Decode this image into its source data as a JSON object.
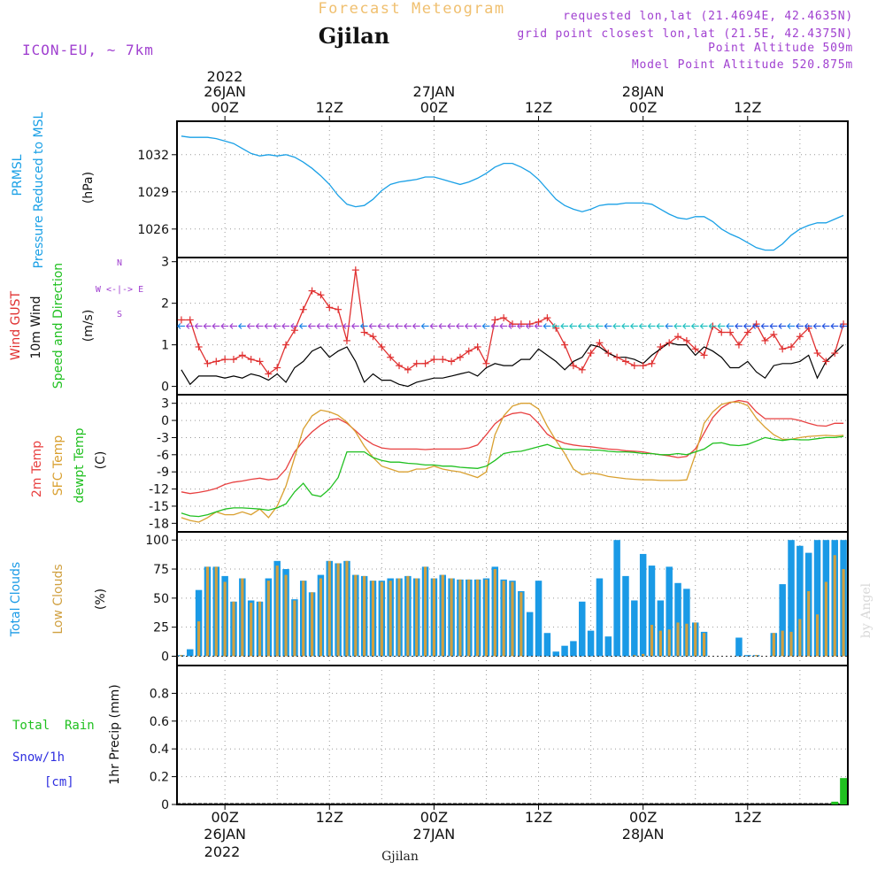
{
  "header": {
    "subtitle": "Forecast Meteogram",
    "title": "Gjilan",
    "model": "ICON-EU, ~ 7km",
    "requested": "requested lon,lat (21.4694E, 42.4635N)",
    "gridpoint": "grid point closest lon,lat (21.5E, 42.4375N)",
    "point_alt": "Point Altitude 509m",
    "model_alt": "Model Point Altitude 520.875m"
  },
  "footer": {
    "location": "Gjilan",
    "watermark": "by Angel"
  },
  "time_axis": {
    "top_year": "2022",
    "labels": [
      {
        "t": 0,
        "label": "00Z",
        "date": "26JAN"
      },
      {
        "t": 12,
        "label": "12Z",
        "date": ""
      },
      {
        "t": 24,
        "label": "00Z",
        "date": "27JAN"
      },
      {
        "t": 36,
        "label": "12Z",
        "date": ""
      },
      {
        "t": 48,
        "label": "00Z",
        "date": "28JAN"
      },
      {
        "t": 60,
        "label": "12Z",
        "date": ""
      }
    ],
    "bottom_year": "2022"
  },
  "colors": {
    "pressure": "#1aa0e6",
    "gust": "#e03030",
    "wind": "#000000",
    "wind_dir_label": "#1fc01f",
    "temp": "#e84040",
    "sfc": "#d9a030",
    "dewpt": "#20c020",
    "total_clouds": "#1a9ae6",
    "low_clouds": "#d0a040",
    "rain": "#20c020",
    "snow": "#3030e0",
    "purple": "#a040d0",
    "subtitle": "#f0c070"
  },
  "labels": {
    "pressure": [
      "PRMSL",
      "Pressure Reduced to MSL",
      "(hPa)"
    ],
    "wind": [
      "Wind GUST",
      "10m Wind",
      "Speed and Direction",
      "(m/s)"
    ],
    "compass": [
      "N",
      "W <-|-> E",
      "S"
    ],
    "temp": [
      "2m Temp",
      "SFC Temp",
      "dewpt Temp",
      "(C)"
    ],
    "clouds": [
      "Total Clouds",
      "Low Clouds",
      "(%)"
    ],
    "precip": [
      "Total  Rain",
      "Snow/1h",
      "[cm]",
      "1hr Precip (mm)"
    ]
  },
  "chart_data": [
    {
      "type": "line",
      "name": "pressure",
      "x": [
        -5,
        -4,
        -3,
        -2,
        -1,
        0,
        1,
        2,
        3,
        4,
        5,
        6,
        7,
        8,
        9,
        10,
        11,
        12,
        13,
        14,
        15,
        16,
        17,
        18,
        19,
        20,
        21,
        22,
        23,
        24,
        25,
        26,
        27,
        28,
        29,
        30,
        31,
        32,
        33,
        34,
        35,
        36,
        37,
        38,
        39,
        40,
        41,
        42,
        43,
        44,
        45,
        46,
        47,
        48,
        49,
        50,
        51,
        52,
        53,
        54,
        55,
        56,
        57,
        58,
        59,
        60,
        61,
        62,
        63,
        64,
        65,
        66,
        67,
        68,
        69,
        70,
        71
      ],
      "y": [
        1033.5,
        1033.4,
        1033.4,
        1033.4,
        1033.3,
        1033.1,
        1032.9,
        1032.5,
        1032.1,
        1031.9,
        1032.0,
        1031.9,
        1032.0,
        1031.8,
        1031.4,
        1030.9,
        1030.3,
        1029.6,
        1028.7,
        1028.0,
        1027.8,
        1027.9,
        1028.4,
        1029.1,
        1029.6,
        1029.8,
        1029.9,
        1030.0,
        1030.2,
        1030.2,
        1030.0,
        1029.8,
        1029.6,
        1029.8,
        1030.1,
        1030.5,
        1031.0,
        1031.3,
        1031.3,
        1031.0,
        1030.6,
        1030.0,
        1029.2,
        1028.4,
        1027.9,
        1027.6,
        1027.4,
        1027.6,
        1027.9,
        1028.0,
        1028.0,
        1028.1,
        1028.1,
        1028.1,
        1028.0,
        1027.6,
        1027.2,
        1026.9,
        1026.8,
        1027.0,
        1027.0,
        1026.6,
        1026.0,
        1025.6,
        1025.3,
        1024.9,
        1024.5,
        1024.3,
        1024.3,
        1024.8,
        1025.5,
        1026.0,
        1026.3,
        1026.5,
        1026.5,
        1026.8,
        1027.1
      ],
      "ylim": [
        1023.7,
        1034.7
      ],
      "ticks": [
        1026,
        1029,
        1032
      ]
    },
    {
      "type": "line",
      "name": "wind",
      "x": [
        -5,
        -4,
        -3,
        -2,
        -1,
        0,
        1,
        2,
        3,
        4,
        5,
        6,
        7,
        8,
        9,
        10,
        11,
        12,
        13,
        14,
        15,
        16,
        17,
        18,
        19,
        20,
        21,
        22,
        23,
        24,
        25,
        26,
        27,
        28,
        29,
        30,
        31,
        32,
        33,
        34,
        35,
        36,
        37,
        38,
        39,
        40,
        41,
        42,
        43,
        44,
        45,
        46,
        47,
        48,
        49,
        50,
        51,
        52,
        53,
        54,
        55,
        56,
        57,
        58,
        59,
        60,
        61,
        62,
        63,
        64,
        65,
        66,
        67,
        68,
        69,
        70,
        71
      ],
      "gust": [
        1.6,
        1.6,
        0.95,
        0.55,
        0.6,
        0.65,
        0.65,
        0.75,
        0.65,
        0.6,
        0.3,
        0.45,
        1.0,
        1.35,
        1.85,
        2.3,
        2.2,
        1.9,
        1.85,
        1.1,
        2.8,
        1.3,
        1.2,
        0.95,
        0.7,
        0.5,
        0.4,
        0.55,
        0.55,
        0.65,
        0.65,
        0.6,
        0.7,
        0.85,
        0.95,
        0.55,
        1.6,
        1.65,
        1.5,
        1.5,
        1.5,
        1.55,
        1.65,
        1.4,
        1.0,
        0.5,
        0.4,
        0.8,
        1.05,
        0.8,
        0.7,
        0.6,
        0.5,
        0.5,
        0.55,
        0.95,
        1.05,
        1.2,
        1.1,
        0.9,
        0.75,
        1.45,
        1.3,
        1.3,
        1.0,
        1.3,
        1.5,
        1.1,
        1.25,
        0.9,
        0.95,
        1.2,
        1.4,
        0.8,
        0.6,
        0.8,
        1.5
      ],
      "wind": [
        0.4,
        0.05,
        0.25,
        0.25,
        0.25,
        0.2,
        0.25,
        0.2,
        0.3,
        0.25,
        0.15,
        0.3,
        0.1,
        0.45,
        0.6,
        0.85,
        0.95,
        0.7,
        0.85,
        0.95,
        0.6,
        0.1,
        0.3,
        0.15,
        0.15,
        0.05,
        0.0,
        0.1,
        0.15,
        0.2,
        0.2,
        0.25,
        0.3,
        0.35,
        0.25,
        0.45,
        0.55,
        0.5,
        0.5,
        0.65,
        0.65,
        0.9,
        0.75,
        0.6,
        0.4,
        0.6,
        0.7,
        1.0,
        0.95,
        0.8,
        0.7,
        0.7,
        0.65,
        0.55,
        0.75,
        0.9,
        1.05,
        1.0,
        1.0,
        0.75,
        0.95,
        0.85,
        0.7,
        0.45,
        0.45,
        0.6,
        0.35,
        0.2,
        0.5,
        0.55,
        0.55,
        0.6,
        0.75,
        0.2,
        0.6,
        0.8,
        1.0
      ],
      "ylim": [
        -0.2,
        3.1
      ],
      "ticks": [
        0,
        1,
        2,
        3
      ]
    },
    {
      "type": "line",
      "name": "temperature",
      "x": [
        -5,
        -4,
        -3,
        -2,
        -1,
        0,
        1,
        2,
        3,
        4,
        5,
        6,
        7,
        8,
        9,
        10,
        11,
        12,
        13,
        14,
        15,
        16,
        17,
        18,
        19,
        20,
        21,
        22,
        23,
        24,
        25,
        26,
        27,
        28,
        29,
        30,
        31,
        32,
        33,
        34,
        35,
        36,
        37,
        38,
        39,
        40,
        41,
        42,
        43,
        44,
        45,
        46,
        47,
        48,
        49,
        50,
        51,
        52,
        53,
        54,
        55,
        56,
        57,
        58,
        59,
        60,
        61,
        62,
        63,
        64,
        65,
        66,
        67,
        68,
        69,
        70,
        71
      ],
      "temp2m": [
        -12.5,
        -12.8,
        -12.6,
        -12.3,
        -11.9,
        -11.2,
        -10.8,
        -10.6,
        -10.3,
        -10.1,
        -10.4,
        -10.2,
        -8.5,
        -5.5,
        -3.6,
        -2.0,
        -0.8,
        0.1,
        0.3,
        -0.5,
        -1.8,
        -3.2,
        -4.2,
        -4.8,
        -5.0,
        -5.0,
        -5.0,
        -5.0,
        -5.1,
        -5.0,
        -5.0,
        -5.0,
        -5.0,
        -4.8,
        -4.3,
        -2.5,
        -0.6,
        0.6,
        1.2,
        1.4,
        1.0,
        -0.5,
        -2.4,
        -3.4,
        -4.0,
        -4.3,
        -4.5,
        -4.6,
        -4.8,
        -5.0,
        -5.1,
        -5.3,
        -5.4,
        -5.5,
        -5.8,
        -6.0,
        -6.2,
        -6.5,
        -6.3,
        -5.0,
        -2.2,
        0.5,
        2.2,
        3.1,
        3.5,
        3.2,
        1.5,
        0.3,
        0.3,
        0.3,
        0.3,
        0.0,
        -0.5,
        -0.9,
        -1.0,
        -0.5,
        -0.5
      ],
      "sfc": [
        -17.0,
        -17.5,
        -17.8,
        -17.0,
        -16.0,
        -16.5,
        -16.5,
        -16.0,
        -16.5,
        -15.5,
        -17.0,
        -15.0,
        -11.5,
        -6.5,
        -1.5,
        0.8,
        1.8,
        1.5,
        0.9,
        -0.3,
        -2.0,
        -4.5,
        -6.5,
        -8.0,
        -8.5,
        -9.0,
        -9.0,
        -8.5,
        -8.5,
        -8.0,
        -8.5,
        -8.8,
        -9.0,
        -9.5,
        -10.0,
        -9.0,
        -2.5,
        0.8,
        2.5,
        3.0,
        3.0,
        2.0,
        -1.0,
        -3.5,
        -5.8,
        -8.5,
        -9.5,
        -9.2,
        -9.4,
        -9.8,
        -10.0,
        -10.2,
        -10.3,
        -10.4,
        -10.4,
        -10.5,
        -10.5,
        -10.5,
        -10.4,
        -6.0,
        -0.5,
        1.5,
        2.8,
        3.2,
        3.2,
        2.6,
        0.4,
        -1.2,
        -2.5,
        -3.3,
        -3.3,
        -3.0,
        -2.8,
        -2.7,
        -2.6,
        -2.7,
        -2.6
      ],
      "dewpt": [
        -16.2,
        -16.7,
        -16.8,
        -16.5,
        -16.0,
        -15.5,
        -15.3,
        -15.3,
        -15.4,
        -15.5,
        -15.7,
        -15.3,
        -14.6,
        -12.5,
        -11.0,
        -13.0,
        -13.3,
        -12.0,
        -10.0,
        -5.5,
        -5.5,
        -5.5,
        -6.5,
        -7.0,
        -7.3,
        -7.3,
        -7.5,
        -7.6,
        -7.8,
        -7.8,
        -8.0,
        -8.0,
        -8.2,
        -8.3,
        -8.4,
        -8.0,
        -7.0,
        -5.8,
        -5.5,
        -5.4,
        -5.0,
        -4.6,
        -4.2,
        -4.8,
        -5.0,
        -5.1,
        -5.1,
        -5.2,
        -5.2,
        -5.4,
        -5.5,
        -5.5,
        -5.6,
        -5.8,
        -5.8,
        -6.0,
        -6.0,
        -5.8,
        -6.0,
        -5.5,
        -5.0,
        -4.0,
        -3.9,
        -4.3,
        -4.4,
        -4.2,
        -3.6,
        -3.0,
        -3.3,
        -3.5,
        -3.3,
        -3.4,
        -3.4,
        -3.2,
        -3.0,
        -3.0,
        -2.8
      ],
      "ylim": [
        -19.5,
        4.5
      ],
      "ticks": [
        -18,
        -15,
        -12,
        -9,
        -6,
        -3,
        0,
        3
      ]
    },
    {
      "type": "bar",
      "name": "clouds",
      "x": [
        -5,
        -4,
        -3,
        -2,
        -1,
        0,
        1,
        2,
        3,
        4,
        5,
        6,
        7,
        8,
        9,
        10,
        11,
        12,
        13,
        14,
        15,
        16,
        17,
        18,
        19,
        20,
        21,
        22,
        23,
        24,
        25,
        26,
        27,
        28,
        29,
        30,
        31,
        32,
        33,
        34,
        35,
        36,
        37,
        38,
        39,
        40,
        41,
        42,
        43,
        44,
        45,
        46,
        47,
        48,
        49,
        50,
        51,
        52,
        53,
        54,
        55,
        56,
        57,
        58,
        59,
        60,
        61,
        62,
        63,
        64,
        65,
        66,
        67,
        68,
        69,
        70,
        71
      ],
      "total": [
        1,
        6,
        57,
        77,
        77,
        69,
        47,
        67,
        48,
        47,
        67,
        82,
        75,
        49,
        65,
        55,
        70,
        82,
        80,
        82,
        70,
        69,
        65,
        65,
        67,
        67,
        69,
        67,
        77,
        67,
        70,
        67,
        66,
        66,
        66,
        67,
        77,
        66,
        65,
        56,
        38,
        65,
        20,
        4,
        9,
        13,
        47,
        22,
        67,
        17,
        100,
        69,
        48,
        88,
        78,
        48,
        77,
        63,
        58,
        29,
        21,
        0,
        0,
        0,
        16,
        1,
        1,
        0,
        20,
        62,
        100,
        95,
        89,
        100,
        100,
        100,
        100
      ],
      "low": [
        1,
        0,
        30,
        77,
        77,
        64,
        47,
        67,
        46,
        47,
        65,
        78,
        70,
        48,
        65,
        55,
        67,
        82,
        80,
        82,
        70,
        69,
        65,
        64,
        65,
        67,
        69,
        67,
        77,
        67,
        70,
        67,
        66,
        66,
        66,
        66,
        75,
        65,
        64,
        55,
        0,
        0,
        0,
        0,
        0,
        0,
        0,
        0,
        0,
        0,
        0,
        0,
        1,
        2,
        27,
        22,
        23,
        29,
        28,
        29,
        20,
        0,
        0,
        0,
        0,
        0,
        1,
        0,
        20,
        22,
        21,
        32,
        56,
        36,
        64,
        87,
        75
      ],
      "ylim": [
        -8,
        107
      ],
      "ticks": [
        0,
        25,
        50,
        75,
        100
      ]
    },
    {
      "type": "bar",
      "name": "precip",
      "x": [
        70,
        71
      ],
      "rain": [
        0.02,
        0.19
      ],
      "snow": [
        0,
        0
      ],
      "ylim": [
        0,
        1.0
      ],
      "ticks": [
        0,
        0.2,
        0.4,
        0.6,
        0.8
      ]
    }
  ]
}
